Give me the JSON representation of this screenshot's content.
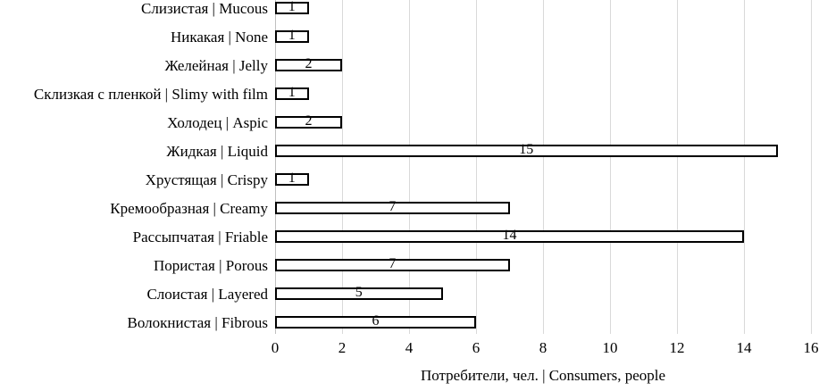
{
  "chart_data": {
    "type": "bar",
    "orientation": "horizontal",
    "title": "",
    "categories": [
      "Слизистая | Mucous",
      "Никакая | None",
      "Желейная | Jelly",
      "Склизкая с пленкой | Slimy with film",
      "Холодец | Aspic",
      "Жидкая | Liquid",
      "Хрустящая | Crispy",
      "Кремообразная | Creamy",
      "Рассыпчатая | Friable",
      "Пористая | Porous",
      "Слоистая | Layered",
      "Волокнистая | Fibrous"
    ],
    "values": [
      1,
      1,
      2,
      1,
      2,
      15,
      1,
      7,
      14,
      7,
      5,
      6
    ],
    "data_labels": [
      "1",
      "1",
      "2",
      "1",
      "2",
      "15",
      "1",
      "7",
      "14",
      "7",
      "5",
      "6"
    ],
    "xlabel": "Потребители, чел. | Consumers, people",
    "ylabel": "",
    "xlim": [
      0,
      16
    ],
    "x_ticks": [
      0,
      2,
      4,
      6,
      8,
      10,
      12,
      14,
      16
    ],
    "grid": true,
    "legend": false,
    "colors": {
      "bar_fill": "#ffffff",
      "bar_border": "#000000",
      "gridline": "#d9d9d9",
      "axis_line": "#bfbfbf",
      "text": "#000000"
    }
  }
}
